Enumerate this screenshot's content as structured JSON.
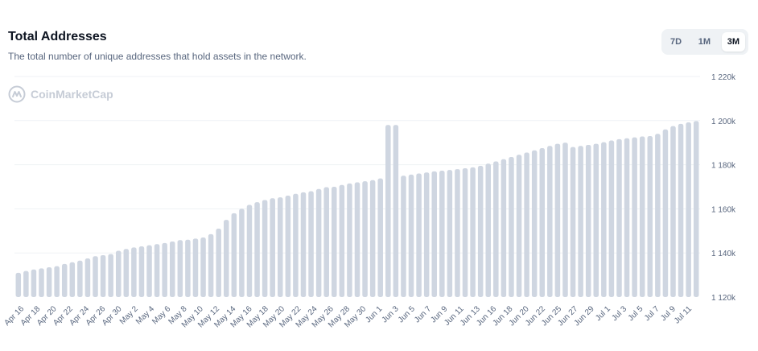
{
  "header": {
    "title": "Total Addresses",
    "subtitle": "The total number of unique addresses that hold assets in the network."
  },
  "range_selector": {
    "options": [
      "7D",
      "1M",
      "3M"
    ],
    "active": "3M"
  },
  "watermark": {
    "text": "CoinMarketCap",
    "icon": "coinmarketcap-logo-icon"
  },
  "colors": {
    "bar": "#cfd6e1",
    "grid": "#eff2f5",
    "text": "#58667e"
  },
  "chart_data": {
    "type": "bar",
    "title": "Total Addresses",
    "xlabel": "",
    "ylabel": "",
    "ylim": [
      1120000,
      1220000
    ],
    "y_tick_values": [
      1120000,
      1140000,
      1160000,
      1180000,
      1200000,
      1220000
    ],
    "y_tick_labels": [
      "1 120k",
      "1 140k",
      "1 160k",
      "1 180k",
      "1 200k",
      "1 220k"
    ],
    "y_axis_position": "right",
    "grid": true,
    "x_tick_labels": [
      "Apr 16",
      "Apr 18",
      "Apr 20",
      "Apr 22",
      "Apr 24",
      "Apr 26",
      "Apr 30",
      "May 2",
      "May 4",
      "May 6",
      "May 8",
      "May 10",
      "May 12",
      "May 14",
      "May 16",
      "May 18",
      "May 20",
      "May 22",
      "May 24",
      "May 26",
      "May 28",
      "May 30",
      "Jun 1",
      "Jun 3",
      "Jun 5",
      "Jun 7",
      "Jun 9",
      "Jun 11",
      "Jun 13",
      "Jun 16",
      "Jun 18",
      "Jun 20",
      "Jun 22",
      "Jun 25",
      "Jun 27",
      "Jun 29",
      "Jul 1",
      "Jul 3",
      "Jul 5",
      "Jul 7",
      "Jul 9",
      "Jul 11"
    ],
    "values": [
      1131000,
      1131800,
      1132500,
      1133000,
      1133500,
      1134000,
      1135000,
      1135800,
      1136500,
      1137500,
      1138500,
      1139000,
      1139500,
      1141000,
      1141800,
      1142500,
      1143000,
      1143500,
      1144000,
      1144500,
      1145200,
      1145800,
      1146000,
      1146500,
      1147000,
      1148500,
      1151000,
      1155000,
      1158000,
      1160000,
      1161800,
      1163000,
      1164000,
      1164800,
      1165200,
      1166000,
      1166800,
      1167500,
      1168000,
      1169000,
      1169800,
      1170000,
      1170800,
      1171500,
      1172000,
      1172500,
      1173000,
      1173800,
      1198000,
      1198000,
      1175000,
      1175500,
      1176000,
      1176500,
      1177000,
      1177300,
      1177600,
      1178000,
      1178400,
      1178800,
      1179500,
      1180500,
      1181500,
      1182500,
      1183500,
      1184500,
      1185500,
      1186500,
      1187500,
      1188500,
      1189500,
      1190000,
      1188000,
      1188500,
      1189000,
      1189500,
      1190200,
      1191000,
      1191600,
      1192000,
      1192400,
      1192800,
      1193000,
      1194000,
      1196000,
      1197500,
      1198500,
      1199200,
      1199800
    ]
  }
}
